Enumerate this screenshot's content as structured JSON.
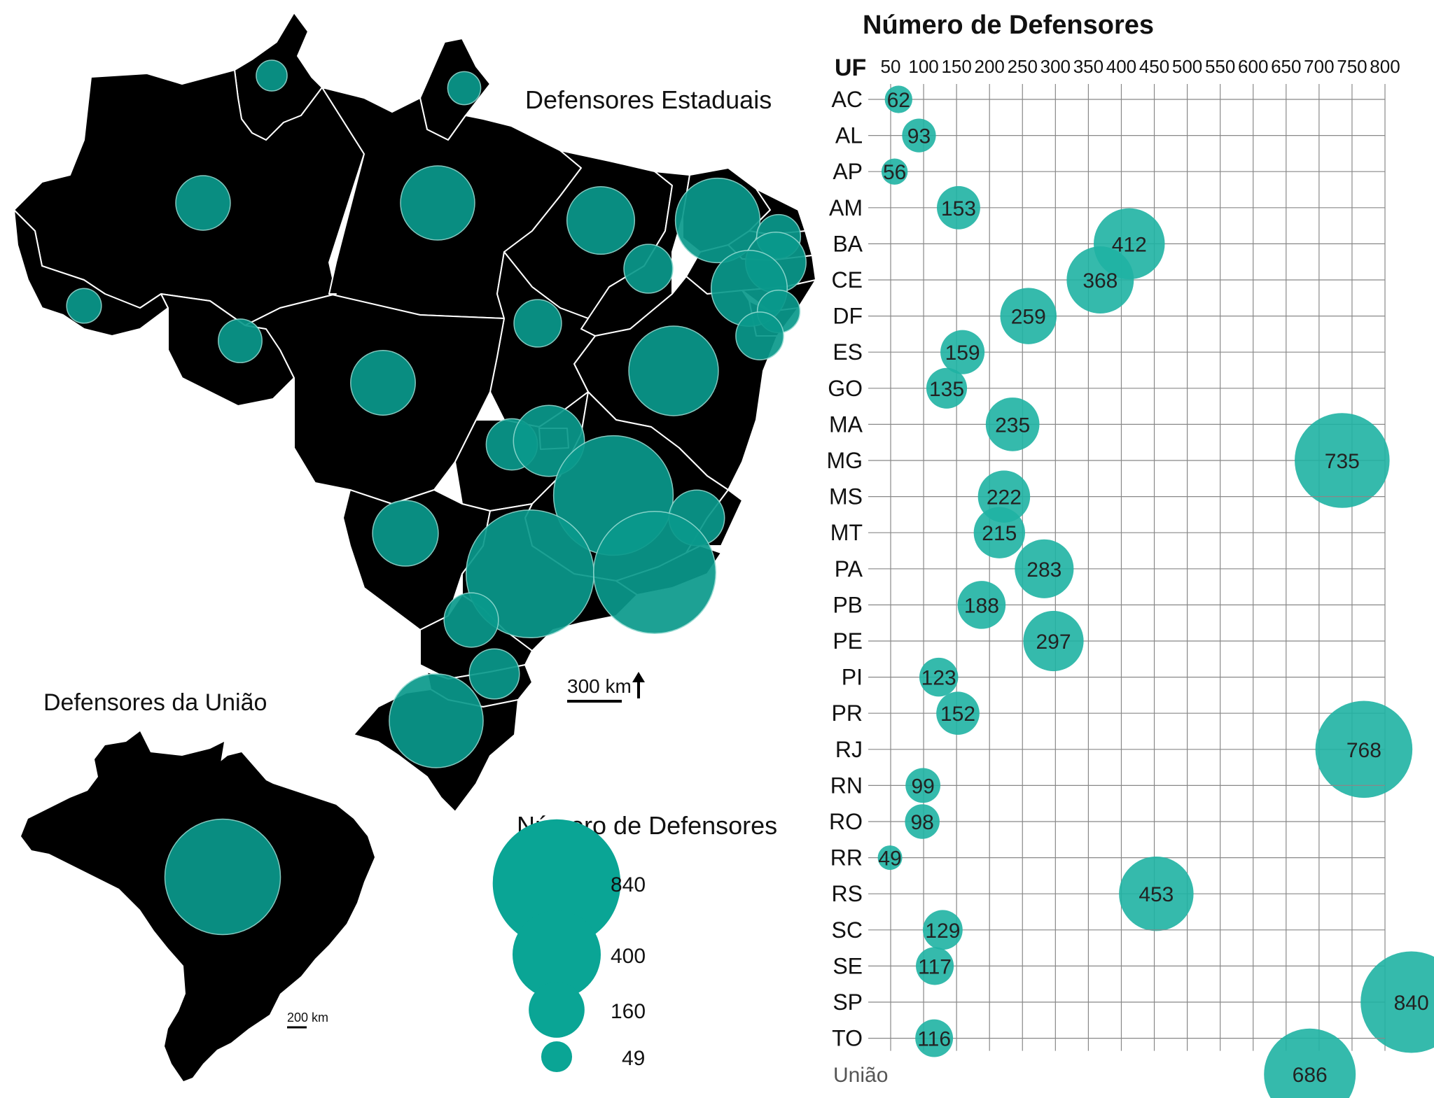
{
  "map": {
    "title_estaduais": "Defensores Estaduais",
    "title_uniao": "Defensores da União",
    "scale_main": "300 km",
    "scale_small": "200 km",
    "uniao_value": 686,
    "legend": {
      "title": "Número de Defensores",
      "values": [
        840,
        400,
        160,
        49
      ]
    },
    "states": [
      {
        "uf": "RR",
        "value": 49
      },
      {
        "uf": "AP",
        "value": 56
      },
      {
        "uf": "AM",
        "value": 153
      },
      {
        "uf": "PA",
        "value": 283
      },
      {
        "uf": "MA",
        "value": 235
      },
      {
        "uf": "CE",
        "value": 368
      },
      {
        "uf": "RN",
        "value": 99
      },
      {
        "uf": "PB",
        "value": 188
      },
      {
        "uf": "PE",
        "value": 297
      },
      {
        "uf": "AL",
        "value": 93
      },
      {
        "uf": "SE",
        "value": 117
      },
      {
        "uf": "PI",
        "value": 123
      },
      {
        "uf": "AC",
        "value": 62
      },
      {
        "uf": "RO",
        "value": 98
      },
      {
        "uf": "TO",
        "value": 116
      },
      {
        "uf": "BA",
        "value": 412
      },
      {
        "uf": "MT",
        "value": 215
      },
      {
        "uf": "GO",
        "value": 135
      },
      {
        "uf": "DF",
        "value": 259
      },
      {
        "uf": "MG",
        "value": 735
      },
      {
        "uf": "ES",
        "value": 159
      },
      {
        "uf": "MS",
        "value": 222
      },
      {
        "uf": "SP",
        "value": 840
      },
      {
        "uf": "RJ",
        "value": 768
      },
      {
        "uf": "PR",
        "value": 152
      },
      {
        "uf": "SC",
        "value": 129
      },
      {
        "uf": "RS",
        "value": 453
      }
    ]
  },
  "chart_data": {
    "type": "scatter",
    "title": "Número de Defensores",
    "ylabel": "UF",
    "x_ticks": [
      50,
      100,
      150,
      200,
      250,
      300,
      350,
      400,
      450,
      500,
      550,
      600,
      650,
      700,
      750,
      800
    ],
    "xlim": [
      50,
      800
    ],
    "categories": [
      "AC",
      "AL",
      "AP",
      "AM",
      "BA",
      "CE",
      "DF",
      "ES",
      "GO",
      "MA",
      "MG",
      "MS",
      "MT",
      "PA",
      "PB",
      "PE",
      "PI",
      "PR",
      "RJ",
      "RN",
      "RO",
      "RR",
      "RS",
      "SC",
      "SE",
      "SP",
      "TO",
      "União"
    ],
    "values": [
      62,
      93,
      56,
      153,
      412,
      368,
      259,
      159,
      135,
      235,
      735,
      222,
      215,
      283,
      188,
      297,
      123,
      152,
      768,
      99,
      98,
      49,
      453,
      129,
      117,
      840,
      116,
      686
    ],
    "grid": true,
    "color": "#1fb3a3"
  }
}
